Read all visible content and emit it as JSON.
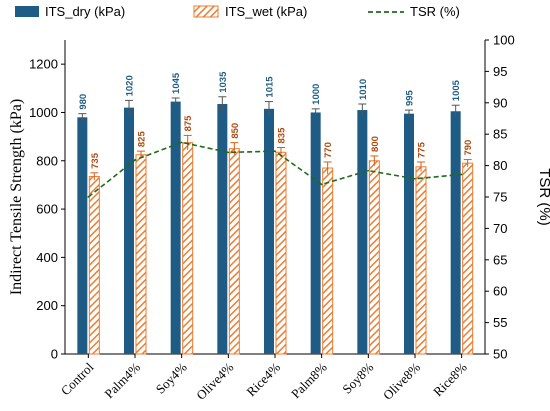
{
  "chart_data": {
    "type": "bar",
    "categories": [
      "Control",
      "Palm4%",
      "Soy4%",
      "Olive4%",
      "Rice4%",
      "Palm8%",
      "Soy8%",
      "Olive8%",
      "Rice8%"
    ],
    "series": [
      {
        "name": "ITS_dry (kPa)",
        "axis": "left",
        "values": [
          980,
          1020,
          1045,
          1035,
          1015,
          1000,
          1010,
          995,
          1005
        ],
        "errors": [
          15,
          30,
          15,
          30,
          30,
          15,
          25,
          15,
          25
        ],
        "color": "#1f5c85"
      },
      {
        "name": "ITS_wet (kPa)",
        "axis": "left",
        "values": [
          735,
          825,
          875,
          850,
          835,
          770,
          800,
          775,
          790
        ],
        "errors": [
          15,
          15,
          30,
          25,
          20,
          25,
          20,
          20,
          15
        ],
        "color": "#ed7d31"
      },
      {
        "name": "TSR (%)",
        "axis": "right",
        "type": "line",
        "values": [
          75.0,
          80.9,
          83.7,
          82.1,
          82.3,
          77.0,
          79.2,
          77.9,
          78.6
        ],
        "color": "#1e6b1e"
      }
    ],
    "ylabel": "Indirect Tensile Strength (kPa)",
    "y2label": "TSR (%)",
    "ylim": [
      0,
      1300
    ],
    "y2lim": [
      50,
      100
    ],
    "yticks": [
      0,
      200,
      400,
      600,
      800,
      1000,
      1200
    ],
    "y2ticks": [
      50,
      55,
      60,
      65,
      70,
      75,
      80,
      85,
      90,
      95,
      100
    ],
    "legend": "top",
    "grid": false
  }
}
